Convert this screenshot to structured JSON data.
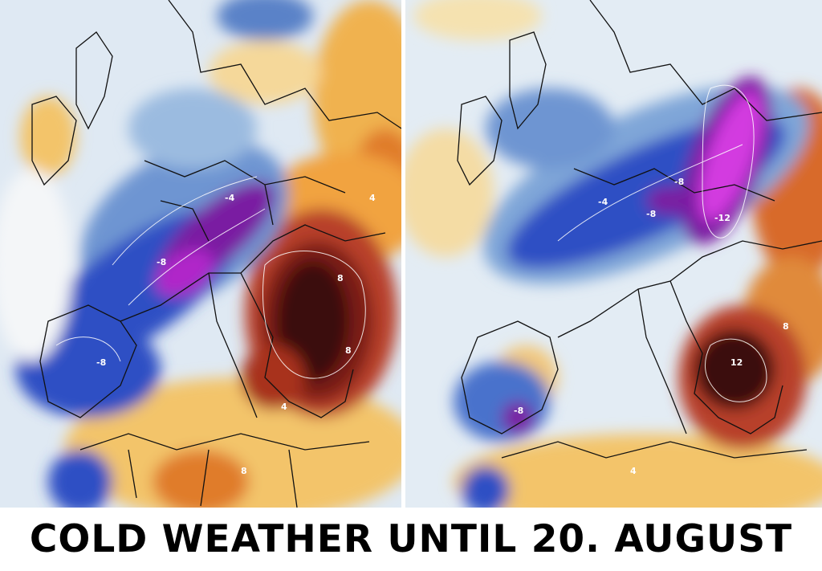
{
  "caption": "COLD WEATHER UNTIL 20. AUGUST",
  "palette": {
    "deep_cold": "#7a1fa2",
    "very_cold": "#b026c9",
    "cold": "#2f4fc4",
    "cool": "#7fa6d8",
    "neutral": "#eef2f5",
    "warm": "#f3c46a",
    "hot": "#e07b2a",
    "very_hot": "#a8321c",
    "extreme_hot": "#3a0d0d"
  },
  "maps": [
    {
      "name": "left",
      "contour_labels": [
        "-8",
        "-8",
        "8",
        "8",
        "4",
        "-4",
        "4",
        "8"
      ]
    },
    {
      "name": "right",
      "contour_labels": [
        "-8",
        "-8",
        "-12",
        "-4",
        "-8",
        "12",
        "8",
        "4"
      ]
    }
  ]
}
